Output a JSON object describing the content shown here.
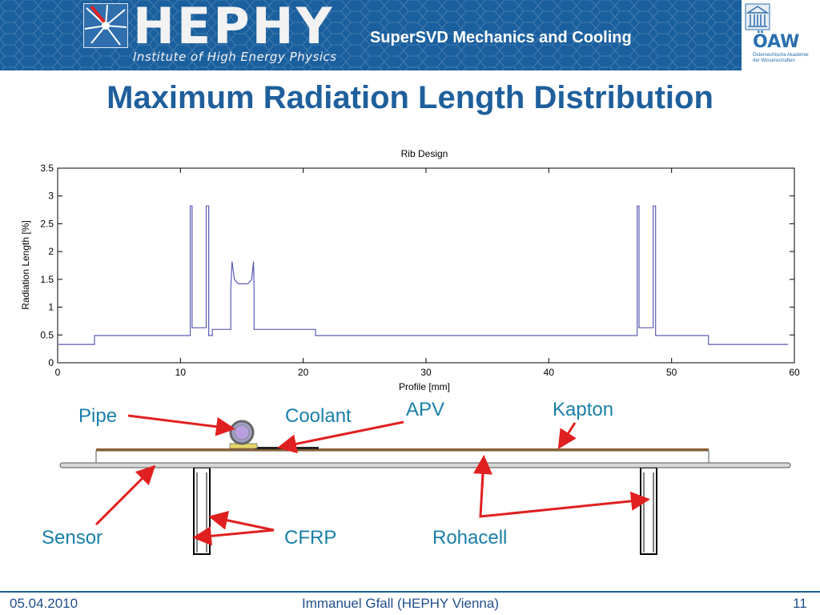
{
  "header": {
    "logo_text": "HEPHY",
    "logo_subtitle": "Institute of High Energy Physics",
    "title": "SuperSVD Mechanics and Cooling",
    "right_logo_text": "ÖAW",
    "right_logo_subtitle": "Österreichische Akademie der Wissenschaften"
  },
  "slide_title": "Maximum Radiation Length Distribution",
  "chart_data": {
    "type": "line",
    "title": "Rib Design",
    "xlabel": "Profile [mm]",
    "ylabel": "Radiation Length [%]",
    "xlim": [
      0,
      60
    ],
    "ylim": [
      0,
      3.5
    ],
    "xticks": [
      "0",
      "10",
      "20",
      "30",
      "40",
      "50",
      "60"
    ],
    "yticks": [
      "0",
      "0.5",
      "1",
      "1.5",
      "2",
      "2.5",
      "3",
      "3.5"
    ],
    "grid": false,
    "color": "#5a5ab4",
    "x": [
      0,
      3,
      3,
      10.8,
      10.8,
      10.95,
      10.95,
      12.1,
      12.1,
      12.3,
      12.3,
      12.6,
      12.6,
      13.1,
      13.1,
      14.1,
      14.1,
      14.2,
      14.4,
      14.7,
      15.1,
      15.5,
      15.8,
      15.95,
      16.0,
      16.0,
      21,
      21,
      47.2,
      47.2,
      47.35,
      47.35,
      48.5,
      48.5,
      48.7,
      48.7,
      53,
      53,
      59.5
    ],
    "y": [
      0.33,
      0.33,
      0.49,
      0.49,
      2.82,
      2.82,
      0.63,
      0.63,
      2.82,
      2.82,
      0.49,
      0.49,
      0.6,
      0.6,
      0.6,
      0.6,
      1.32,
      1.82,
      1.5,
      1.42,
      1.42,
      1.42,
      1.5,
      1.82,
      1.32,
      0.6,
      0.6,
      0.49,
      0.49,
      2.82,
      2.82,
      0.63,
      0.63,
      2.82,
      2.82,
      0.49,
      0.49,
      0.33,
      0.33
    ]
  },
  "labels": {
    "pipe": "Pipe",
    "coolant": "Coolant",
    "apv": "APV",
    "kapton": "Kapton",
    "sensor": "Sensor",
    "cfrp": "CFRP",
    "rohacell": "Rohacell"
  },
  "footer": {
    "date": "05.04.2010",
    "author": "Immanuel Gfall (HEPHY Vienna)",
    "page": "11"
  }
}
